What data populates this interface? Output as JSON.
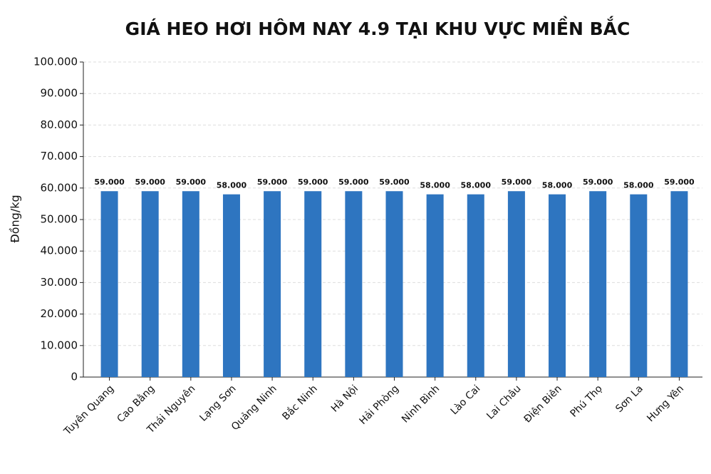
{
  "chart_data": {
    "type": "bar",
    "title": "GIÁ HEO HƠI HÔM NAY 4.9 TẠI KHU VỰC MIỀN BẮC",
    "y_label": "Đồng/kg",
    "categories": [
      "Tuyên Quang",
      "Cao Bằng",
      "Thái Nguyên",
      "Lạng Sơn",
      "Quảng Ninh",
      "Bắc Ninh",
      "Hà Nội",
      "Hải Phòng",
      "Ninh Bình",
      "Lào Cai",
      "Lai Châu",
      "Điện Biên",
      "Phú Thọ",
      "Sơn La",
      "Hưng Yên"
    ],
    "values": [
      59000,
      59000,
      59000,
      58000,
      59000,
      59000,
      59000,
      59000,
      58000,
      58000,
      59000,
      58000,
      59000,
      58000,
      59000
    ],
    "value_labels": [
      "59.000",
      "59.000",
      "59.000",
      "58.000",
      "59.000",
      "59.000",
      "59.000",
      "59.000",
      "58.000",
      "58.000",
      "59.000",
      "58.000",
      "59.000",
      "58.000",
      "59.000"
    ],
    "color": "#2e75c0",
    "ylim": [
      0,
      100000
    ],
    "yticks": [
      0,
      {
        "value": 10000,
        "label": "10.000"
      },
      {
        "value": 20000,
        "label": "20.000"
      },
      {
        "value": 30000,
        "label": "30.000"
      },
      {
        "value": 40000,
        "label": "40.000"
      },
      {
        "value": 50000,
        "label": "50.000"
      },
      {
        "value": 60000,
        "label": "60.000"
      },
      {
        "value": 70000,
        "label": "70.000"
      },
      {
        "value": 80000,
        "label": "80.000"
      },
      {
        "value": 90000,
        "label": "90.000"
      },
      {
        "value": 100000,
        "label": "100.000"
      }
    ],
    "grid": true
  }
}
